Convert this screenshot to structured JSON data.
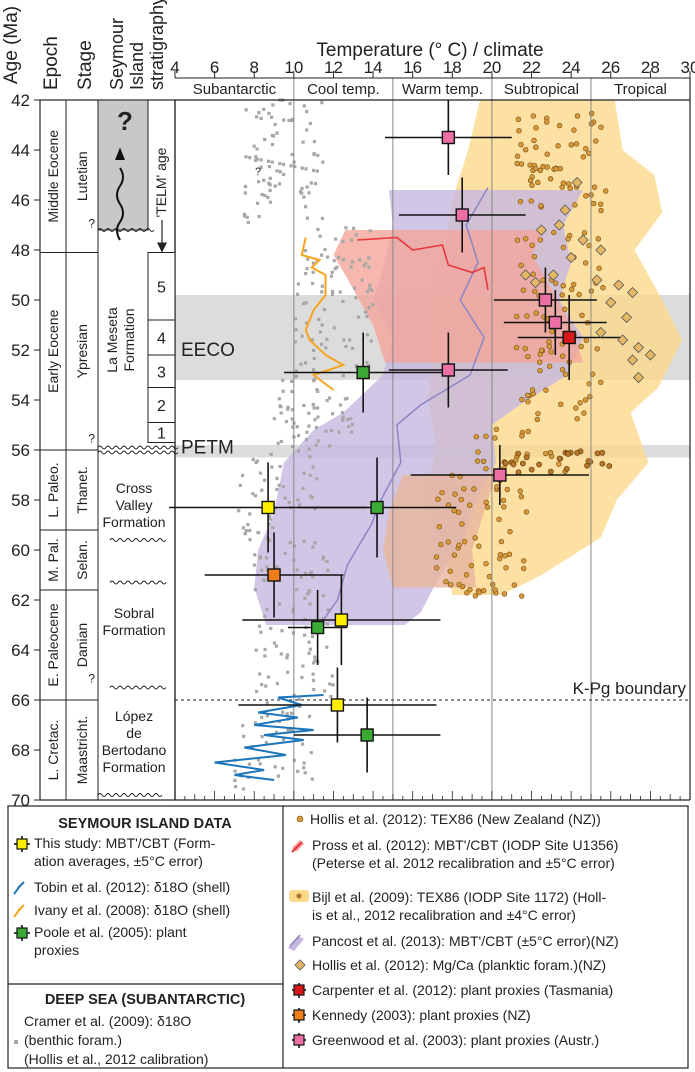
{
  "chart_data": {
    "type": "scatter",
    "x_axis": {
      "label": "Temperature (° C) / climate",
      "range": [
        4,
        30
      ],
      "ticks": [
        4,
        6,
        8,
        10,
        12,
        14,
        16,
        18,
        20,
        22,
        24,
        26,
        28,
        30
      ]
    },
    "y_axis": {
      "label": "Age (Ma)",
      "range": [
        42,
        70
      ],
      "ticks": [
        42,
        44,
        46,
        48,
        50,
        52,
        54,
        56,
        58,
        60,
        62,
        64,
        66,
        68,
        70
      ],
      "inverted": true
    },
    "column_headers": {
      "epoch": "Epoch",
      "stage": "Stage",
      "strat": [
        "Seymour",
        "Island",
        "stratigraphy"
      ]
    },
    "climate_zones": [
      {
        "label": "Subantarctic",
        "from": 4,
        "to": 10
      },
      {
        "label": "Cool temp.",
        "from": 10,
        "to": 15
      },
      {
        "label": "Warm temp.",
        "from": 15,
        "to": 20
      },
      {
        "label": "Subtropical",
        "from": 20,
        "to": 25
      },
      {
        "label": "Tropical",
        "from": 25,
        "to": 30
      }
    ],
    "epochs": [
      {
        "label": "Middle Eocene",
        "from": 42,
        "to": 48.1
      },
      {
        "label": "Early Eocene",
        "from": 48.1,
        "to": 56
      },
      {
        "label": "L. Paleo.",
        "from": 56,
        "to": 59.2
      },
      {
        "label": "M. Pal.",
        "from": 59.2,
        "to": 61.6
      },
      {
        "label": "E. Paleocene",
        "from": 61.6,
        "to": 66
      },
      {
        "label": "L. Cretac.",
        "from": 66,
        "to": 70
      }
    ],
    "stages": [
      {
        "label": "Lutetian",
        "from": 42,
        "to": 48.1
      },
      {
        "label": "Ypresian",
        "from": 48.1,
        "to": 56
      },
      {
        "label": "Thanet.",
        "from": 56,
        "to": 59.2
      },
      {
        "label": "Selan.",
        "from": 59.2,
        "to": 61.6
      },
      {
        "label": "Danian",
        "from": 61.6,
        "to": 66
      },
      {
        "label": "Maastricht.",
        "from": 66,
        "to": 70
      }
    ],
    "formations": [
      {
        "lines": [
          "La Meseta",
          "Formation"
        ],
        "from": 47.2,
        "to": 56
      },
      {
        "lines": [
          "Cross",
          "Valley",
          "Formation"
        ],
        "from": 56.2,
        "to": 60.2
      },
      {
        "lines": [
          "Sobral",
          "Formation"
        ],
        "from": 60.2,
        "to": 65.5
      },
      {
        "lines": [
          "López",
          "de",
          "Bertodano",
          "Formation"
        ],
        "from": 65.5,
        "to": 69.8
      }
    ],
    "telm_units": [
      {
        "label": "5",
        "from": 48.1,
        "to": 50.8
      },
      {
        "label": "4",
        "from": 50.8,
        "to": 52.2
      },
      {
        "label": "3",
        "from": 52.2,
        "to": 53.5
      },
      {
        "label": "2",
        "from": 53.5,
        "to": 54.9
      },
      {
        "label": "1",
        "from": 54.9,
        "to": 55.7
      }
    ],
    "telm_age_label": "'TELM' age",
    "unknown_age_mark": "?",
    "events": [
      {
        "label": "EECO",
        "from": 49.8,
        "to": 53.2
      },
      {
        "label": "PETM",
        "from": 55.8,
        "to": 56.3
      }
    ],
    "boundary": {
      "label": "K-Pg boundary",
      "age": 66
    },
    "series": [
      {
        "name": "This study: MBT'/CBT (Formation averages, ±5°C error)",
        "marker": "square",
        "color": "#ffee00",
        "points": [
          {
            "x": 8.7,
            "y": 58.3,
            "xerr": 5,
            "yerr": 1.8
          },
          {
            "x": 12.4,
            "y": 62.8,
            "xerr": 5,
            "yerr": 1.8
          },
          {
            "x": 12.2,
            "y": 66.2,
            "xerr": 5,
            "yerr": 1.5
          }
        ]
      },
      {
        "name": "Poole et al. (2005): plant proxies",
        "marker": "square",
        "color": "#3aaa35",
        "points": [
          {
            "x": 13.5,
            "y": 52.9,
            "xerr": 4,
            "yerr": 1.6
          },
          {
            "x": 14.2,
            "y": 58.3,
            "xerr": 4,
            "yerr": 2
          },
          {
            "x": 11.2,
            "y": 63.1,
            "xerr": 1.5,
            "yerr": 1.5
          },
          {
            "x": 13.7,
            "y": 67.4,
            "xerr": 3.7,
            "yerr": 1.5
          }
        ]
      },
      {
        "name": "Carpenter et al. (2012): plant proxies (Tasmania)",
        "marker": "square",
        "color": "#d7191c",
        "points": [
          {
            "x": 23.9,
            "y": 51.5,
            "xerr": 2.6,
            "yerr": 1.7
          }
        ]
      },
      {
        "name": "Kennedy (2003): plant proxies (NZ)",
        "marker": "square",
        "color": "#f07d1a",
        "points": [
          {
            "x": 9.0,
            "y": 61.0,
            "xerr": 3.5,
            "yerr": 1.7
          }
        ]
      },
      {
        "name": "Greenwood et al. (2003): plant proxies (Austr.)",
        "marker": "square",
        "color": "#ec6fa3",
        "points": [
          {
            "x": 17.8,
            "y": 43.5,
            "xerr": 3.2,
            "yerr": 1.5
          },
          {
            "x": 18.5,
            "y": 46.6,
            "xerr": 3.2,
            "yerr": 1.5
          },
          {
            "x": 22.7,
            "y": 50.0,
            "xerr": 2.6,
            "yerr": 1.3
          },
          {
            "x": 23.2,
            "y": 50.9,
            "xerr": 2.6,
            "yerr": 1.3
          },
          {
            "x": 17.8,
            "y": 52.8,
            "xerr": 3,
            "yerr": 1.5
          },
          {
            "x": 20.4,
            "y": 57.0,
            "xerr": 4.5,
            "yerr": 1.2
          }
        ]
      },
      {
        "name": "Hollis et al. (2012): Mg/Ca (planktic foram.)(NZ)",
        "marker": "diamond",
        "color": "#e6b866",
        "points": [
          {
            "x": 22.5,
            "y": 47.2
          },
          {
            "x": 23.4,
            "y": 47.0
          },
          {
            "x": 24.6,
            "y": 47.6
          },
          {
            "x": 25.5,
            "y": 48.0
          },
          {
            "x": 24.0,
            "y": 48.3
          },
          {
            "x": 22.2,
            "y": 49.3
          },
          {
            "x": 23.1,
            "y": 49.0
          },
          {
            "x": 25.3,
            "y": 49.2
          },
          {
            "x": 26.4,
            "y": 49.4
          },
          {
            "x": 27.1,
            "y": 49.7
          },
          {
            "x": 26.0,
            "y": 50.1
          },
          {
            "x": 26.8,
            "y": 50.7
          },
          {
            "x": 25.5,
            "y": 51.3
          },
          {
            "x": 26.6,
            "y": 51.6
          },
          {
            "x": 27.4,
            "y": 51.9
          },
          {
            "x": 27.1,
            "y": 52.4
          },
          {
            "x": 28.0,
            "y": 52.2
          },
          {
            "x": 27.4,
            "y": 53.1
          },
          {
            "x": 24.3,
            "y": 45.3
          },
          {
            "x": 23.7,
            "y": 46.4
          },
          {
            "x": 21.7,
            "y": 49.0
          }
        ]
      }
    ],
    "lines": [
      {
        "name": "Tobin et al. (2012): δ18O (shell)",
        "color": "#1b75bb",
        "points": [
          {
            "x": 11.5,
            "y": 65.8
          },
          {
            "x": 9.2,
            "y": 65.9
          },
          {
            "x": 10.4,
            "y": 66.2
          },
          {
            "x": 8.2,
            "y": 66.5
          },
          {
            "x": 10.2,
            "y": 66.7
          },
          {
            "x": 8.0,
            "y": 67.0
          },
          {
            "x": 11.0,
            "y": 67.2
          },
          {
            "x": 8.5,
            "y": 67.4
          },
          {
            "x": 10.5,
            "y": 67.6
          },
          {
            "x": 7.5,
            "y": 67.9
          },
          {
            "x": 9.6,
            "y": 68.2
          },
          {
            "x": 6.0,
            "y": 68.5
          },
          {
            "x": 8.5,
            "y": 68.8
          },
          {
            "x": 7.0,
            "y": 69.0
          },
          {
            "x": 9.0,
            "y": 69.2
          }
        ]
      },
      {
        "name": "Ivany et al. (2008): δ18O (shell)",
        "color": "#f7a520",
        "points": [
          {
            "x": 10.6,
            "y": 47.5
          },
          {
            "x": 10.4,
            "y": 48.2
          },
          {
            "x": 11.3,
            "y": 48.4
          },
          {
            "x": 10.9,
            "y": 48.7
          },
          {
            "x": 11.6,
            "y": 49.0
          },
          {
            "x": 11.6,
            "y": 49.8
          },
          {
            "x": 11.0,
            "y": 50.4
          },
          {
            "x": 10.6,
            "y": 51.2
          },
          {
            "x": 10.8,
            "y": 51.6
          },
          {
            "x": 11.6,
            "y": 52.2
          },
          {
            "x": 12.5,
            "y": 52.6
          },
          {
            "x": 11.0,
            "y": 53.0
          },
          {
            "x": 12.0,
            "y": 53.6
          }
        ]
      },
      {
        "name": "Pancost et al. (2013): MBT'/CBT (±5°C error)(NZ)",
        "color": "#8c86c6",
        "points": [
          {
            "x": 19.8,
            "y": 45.5
          },
          {
            "x": 18.7,
            "y": 47.0
          },
          {
            "x": 19.3,
            "y": 48.5
          },
          {
            "x": 18.4,
            "y": 50.0
          },
          {
            "x": 19.6,
            "y": 51.5
          },
          {
            "x": 18.9,
            "y": 53.0
          },
          {
            "x": 16.4,
            "y": 54.2
          },
          {
            "x": 15.2,
            "y": 55.0
          },
          {
            "x": 15.4,
            "y": 56.5
          },
          {
            "x": 14.4,
            "y": 58.0
          },
          {
            "x": 13.9,
            "y": 59.0
          },
          {
            "x": 12.7,
            "y": 60.6
          },
          {
            "x": 12.2,
            "y": 62.0
          },
          {
            "x": 11.3,
            "y": 63.0
          }
        ]
      }
    ],
    "bands": [
      {
        "name": "Bijl et al. (2009): TEX86 (IODP Site 1172) (Hollis et al., 2012 calibration and ±4°C error)",
        "color": "#fdd98c",
        "left": [
          [
            19.4,
            42.0
          ],
          [
            18.8,
            44.0
          ],
          [
            18.0,
            46.0
          ],
          [
            17.6,
            48.0
          ],
          [
            16.6,
            50.0
          ],
          [
            17.0,
            52.0
          ],
          [
            16.8,
            54.0
          ],
          [
            17.2,
            56.0
          ],
          [
            16.5,
            58.0
          ],
          [
            17.6,
            60.0
          ],
          [
            18.0,
            61.8
          ]
        ],
        "right": [
          [
            26.2,
            42.0
          ],
          [
            26.6,
            44.0
          ],
          [
            28.2,
            45.0
          ],
          [
            28.6,
            46.5
          ],
          [
            27.2,
            48.0
          ],
          [
            28.6,
            50.0
          ],
          [
            29.6,
            51.6
          ],
          [
            28.4,
            53.5
          ],
          [
            27.0,
            54.5
          ],
          [
            27.9,
            56.5
          ],
          [
            26.3,
            58.0
          ],
          [
            25.5,
            59.5
          ],
          [
            22.5,
            61.0
          ],
          [
            20.5,
            61.8
          ]
        ]
      },
      {
        "name": "Pancost et al. (2013): MBT'/CBT (±5°C error)(NZ)",
        "color": "#c6b8e0",
        "left": [
          [
            14.8,
            45.6
          ],
          [
            15.0,
            47.0
          ],
          [
            14.6,
            48.5
          ],
          [
            14.0,
            50.0
          ],
          [
            15.0,
            51.5
          ],
          [
            14.5,
            53.0
          ],
          [
            12.5,
            54.5
          ],
          [
            11.0,
            55.2
          ],
          [
            9.5,
            56.5
          ],
          [
            9.0,
            58.5
          ],
          [
            8.2,
            60.0
          ],
          [
            8.0,
            61.5
          ],
          [
            8.6,
            63.0
          ]
        ],
        "right": [
          [
            24.6,
            45.6
          ],
          [
            23.6,
            47.0
          ],
          [
            24.0,
            48.5
          ],
          [
            23.4,
            50.0
          ],
          [
            24.6,
            51.5
          ],
          [
            23.8,
            53.0
          ],
          [
            21.4,
            54.2
          ],
          [
            20.0,
            55.0
          ],
          [
            20.2,
            56.5
          ],
          [
            19.2,
            58.0
          ],
          [
            18.6,
            59.5
          ],
          [
            17.4,
            61.0
          ],
          [
            16.4,
            62.5
          ],
          [
            15.6,
            63.0
          ]
        ]
      },
      {
        "name": "Pross et al. (2012): MBT'/CBT (IODP Site U1356) (Peterse et al. 2012 recalibration and ±5°C error)",
        "color": "#f2a59a",
        "left": [
          [
            12.6,
            47.2
          ],
          [
            12.0,
            48.2
          ],
          [
            12.6,
            49.0
          ],
          [
            14.0,
            51.0
          ],
          [
            14.6,
            52.5
          ]
        ],
        "right": [
          [
            22.6,
            47.2
          ],
          [
            22.0,
            48.2
          ],
          [
            22.6,
            49.0
          ],
          [
            24.0,
            51.0
          ],
          [
            24.6,
            52.5
          ]
        ]
      },
      {
        "name": "Pancost et al. (2013): MBT'/CBT (±5°C error)(NZ)",
        "color": "#e7b59d",
        "left": [
          [
            15.5,
            57.0
          ],
          [
            14.8,
            58.5
          ],
          [
            14.5,
            60.0
          ],
          [
            15.0,
            61.5
          ]
        ],
        "right": [
          [
            20.2,
            57.0
          ],
          [
            19.6,
            58.5
          ],
          [
            19.0,
            60.0
          ],
          [
            19.2,
            61.5
          ]
        ]
      }
    ],
    "legend": {
      "seymour": {
        "heading": "SEYMOUR ISLAND DATA",
        "items": [
          {
            "lines": [
              "This study: MBT'/CBT (Form-",
              "ation averages, ±5°C error)"
            ]
          },
          {
            "lines": [
              "Tobin et al. (2012): δ18O (shell)"
            ]
          },
          {
            "lines": [
              "Ivany et al. (2008): δ18O (shell)"
            ]
          },
          {
            "lines": [
              "Poole et al. (2005): plant",
              "proxies"
            ]
          }
        ]
      },
      "deep_sea": {
        "heading": "DEEP SEA (SUBANTARCTIC)",
        "items": [
          {
            "lines": [
              "Cramer et al. (2009): δ18O",
              "(benthic foram.)",
              "(Hollis et al., 2012 calibration)"
            ]
          }
        ]
      },
      "others": [
        {
          "lines": [
            "Hollis et al. (2012): TEX86 (New Zealand (NZ))"
          ]
        },
        {
          "lines": [
            "Pross et al. (2012): MBT'/CBT (IODP Site U1356)",
            "(Peterse et al. 2012 recalibration and ±5°C error)"
          ]
        },
        {
          "lines": [
            "Bijl et al. (2009): TEX86 (IODP Site 1172) (Holl-",
            "is et al., 2012 recalibration and ±4°C error)"
          ]
        },
        {
          "lines": [
            "Pancost et al. (2013): MBT'/CBT (±5°C error)(NZ)"
          ]
        },
        {
          "lines": [
            "Hollis et al. (2012): Mg/Ca (planktic foram.)(NZ)"
          ]
        },
        {
          "lines": [
            "Carpenter et al. (2012): plant proxies (Tasmania)"
          ]
        },
        {
          "lines": [
            "Kennedy (2003): plant proxies (NZ)"
          ]
        },
        {
          "lines": [
            "Greenwood et al. (2003): plant proxies (Austr.)"
          ]
        }
      ]
    }
  }
}
